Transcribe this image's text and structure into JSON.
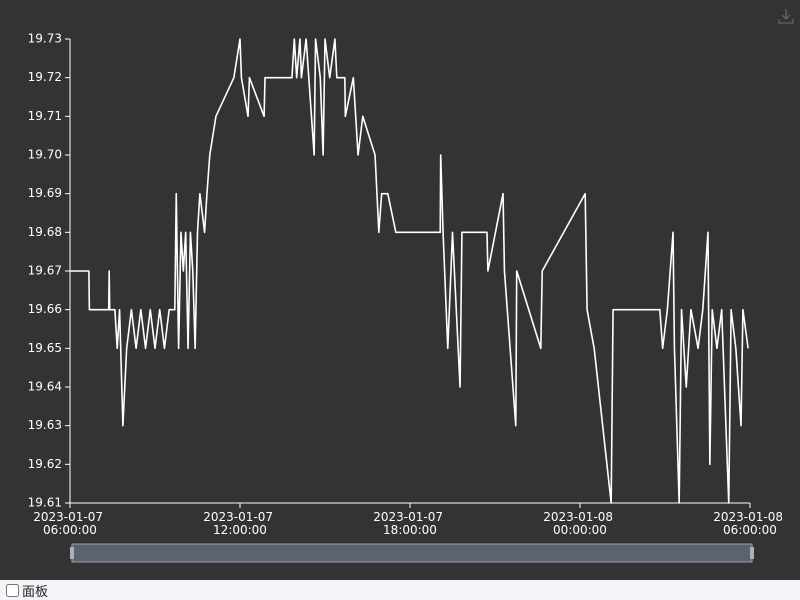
{
  "chart_data": {
    "type": "line",
    "color": "#ffffff",
    "background": "#333333",
    "x": [
      "2023-01-07 06:00:00",
      "2023-01-07 06:40:00",
      "2023-01-07 06:41:00",
      "2023-01-07 07:22:00",
      "2023-01-07 07:23:00",
      "2023-01-07 07:24:00",
      "2023-01-07 07:35:00",
      "2023-01-07 07:40:00",
      "2023-01-07 07:45:00",
      "2023-01-07 07:52:00",
      "2023-01-07 07:56:00",
      "2023-01-07 08:00:00",
      "2023-01-07 08:10:00",
      "2023-01-07 08:20:00",
      "2023-01-07 08:30:00",
      "2023-01-07 08:40:00",
      "2023-01-07 08:50:00",
      "2023-01-07 09:00:00",
      "2023-01-07 09:10:00",
      "2023-01-07 09:20:00",
      "2023-01-07 09:30:00",
      "2023-01-07 09:42:00",
      "2023-01-07 09:45:00",
      "2023-01-07 09:50:00",
      "2023-01-07 09:55:00",
      "2023-01-07 10:00:00",
      "2023-01-07 10:05:00",
      "2023-01-07 10:10:00",
      "2023-01-07 10:15:00",
      "2023-01-07 10:20:00",
      "2023-01-07 10:25:00",
      "2023-01-07 10:30:00",
      "2023-01-07 10:35:00",
      "2023-01-07 10:45:00",
      "2023-01-07 10:50:00",
      "2023-01-07 10:56:00",
      "2023-01-07 11:09:00",
      "2023-01-07 11:47:00",
      "2023-01-07 12:00:00",
      "2023-01-07 12:03:00",
      "2023-01-07 12:17:00",
      "2023-01-07 12:20:00",
      "2023-01-07 12:51:00",
      "2023-01-07 12:53:00",
      "2023-01-07 13:50:00",
      "2023-01-07 13:55:00",
      "2023-01-07 14:00:00",
      "2023-01-07 14:07:00",
      "2023-01-07 14:10:00",
      "2023-01-07 14:20:00",
      "2023-01-07 14:37:00",
      "2023-01-07 14:40:00",
      "2023-01-07 14:50:00",
      "2023-01-07 14:56:00",
      "2023-01-07 15:00:00",
      "2023-01-07 15:10:00",
      "2023-01-07 15:21:00",
      "2023-01-07 15:25:00",
      "2023-01-07 15:42:00",
      "2023-01-07 15:43:00",
      "2023-01-07 16:00:00",
      "2023-01-07 16:10:00",
      "2023-01-07 16:20:00",
      "2023-01-07 16:46:00",
      "2023-01-07 16:54:00",
      "2023-01-07 17:00:00",
      "2023-01-07 17:13:00",
      "2023-01-07 17:30:00",
      "2023-01-07 17:52:00",
      "2023-01-07 19:04:00",
      "2023-01-07 19:05:00",
      "2023-01-07 19:10:00",
      "2023-01-07 19:20:00",
      "2023-01-07 19:30:00",
      "2023-01-07 19:46:00",
      "2023-01-07 19:50:00",
      "2023-01-07 20:43:00",
      "2023-01-07 20:45:00",
      "2023-01-07 21:17:00",
      "2023-01-07 21:20:00",
      "2023-01-07 21:44:00",
      "2023-01-07 21:46:00",
      "2023-01-07 22:37:00",
      "2023-01-07 22:40:00",
      "2023-01-08 00:11:00",
      "2023-01-08 00:15:00",
      "2023-01-08 00:30:00",
      "2023-01-08 01:06:00",
      "2023-01-08 01:10:00",
      "2023-01-08 02:49:00",
      "2023-01-08 02:55:00",
      "2023-01-08 03:05:00",
      "2023-01-08 03:17:00",
      "2023-01-08 03:20:00",
      "2023-01-08 03:30:00",
      "2023-01-08 03:35:00",
      "2023-01-08 03:45:00",
      "2023-01-08 03:55:00",
      "2023-01-08 04:10:00",
      "2023-01-08 04:20:00",
      "2023-01-08 04:31:00",
      "2023-01-08 04:35:00",
      "2023-01-08 04:40:00",
      "2023-01-08 04:50:00",
      "2023-01-08 05:00:00",
      "2023-01-08 05:15:00",
      "2023-01-08 05:20:00",
      "2023-01-08 05:30:00",
      "2023-01-08 05:41:00",
      "2023-01-08 05:45:00",
      "2023-01-08 05:56:00"
    ],
    "values": [
      19.67,
      19.67,
      19.66,
      19.66,
      19.67,
      19.66,
      19.66,
      19.65,
      19.66,
      19.63,
      19.64,
      19.65,
      19.66,
      19.65,
      19.66,
      19.65,
      19.66,
      19.65,
      19.66,
      19.65,
      19.66,
      19.66,
      19.69,
      19.65,
      19.68,
      19.67,
      19.68,
      19.65,
      19.68,
      19.67,
      19.65,
      19.68,
      19.69,
      19.68,
      19.69,
      19.7,
      19.71,
      19.72,
      19.73,
      19.72,
      19.71,
      19.72,
      19.71,
      19.72,
      19.72,
      19.73,
      19.72,
      19.73,
      19.72,
      19.73,
      19.7,
      19.73,
      19.72,
      19.7,
      19.73,
      19.72,
      19.73,
      19.72,
      19.72,
      19.71,
      19.72,
      19.7,
      19.71,
      19.7,
      19.68,
      19.69,
      19.69,
      19.68,
      19.68,
      19.68,
      19.7,
      19.68,
      19.65,
      19.68,
      19.64,
      19.68,
      19.68,
      19.67,
      19.69,
      19.67,
      19.63,
      19.67,
      19.65,
      19.67,
      19.69,
      19.66,
      19.65,
      19.61,
      19.66,
      19.66,
      19.65,
      19.66,
      19.68,
      19.65,
      19.61,
      19.66,
      19.64,
      19.66,
      19.65,
      19.66,
      19.68,
      19.62,
      19.66,
      19.65,
      19.66,
      19.61,
      19.66,
      19.65,
      19.63,
      19.66,
      19.65
    ],
    "xlim": [
      "2023-01-07 06:00:00",
      "2023-01-08 06:00:00"
    ],
    "xticks": [
      "2023-01-07 06:00:00",
      "2023-01-07 12:00:00",
      "2023-01-07 18:00:00",
      "2023-01-08 00:00:00",
      "2023-01-08 06:00:00"
    ],
    "ylim": [
      19.61,
      19.73
    ],
    "yticks": [
      19.61,
      19.62,
      19.63,
      19.64,
      19.65,
      19.66,
      19.67,
      19.68,
      19.69,
      {
        "value": 19.7,
        "label": "19.70"
      },
      19.71,
      19.72,
      19.73
    ],
    "grid": false
  },
  "panel_toggle": {
    "label": "面板"
  }
}
